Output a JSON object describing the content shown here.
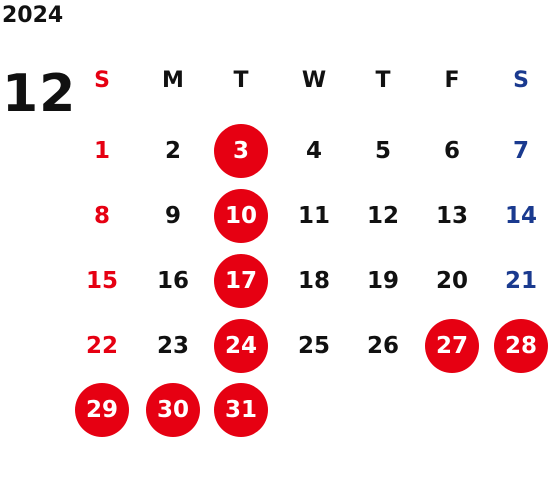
{
  "year": "2024",
  "month": "12",
  "colors": {
    "sunday": "#e60012",
    "saturday": "#1a3a8f",
    "weekday": "#111111",
    "holiday_fill": "#e60012",
    "holiday_text": "#ffffff"
  },
  "weekdays": [
    {
      "label": "S",
      "kind": "sunday"
    },
    {
      "label": "M",
      "kind": "weekday"
    },
    {
      "label": "T",
      "kind": "weekday"
    },
    {
      "label": "W",
      "kind": "weekday"
    },
    {
      "label": "T",
      "kind": "weekday"
    },
    {
      "label": "F",
      "kind": "weekday"
    },
    {
      "label": "S",
      "kind": "saturday"
    }
  ],
  "weeks": [
    [
      {
        "day": "1",
        "kind": "sunday"
      },
      {
        "day": "2",
        "kind": "weekday"
      },
      {
        "day": "3",
        "kind": "holiday"
      },
      {
        "day": "4",
        "kind": "weekday"
      },
      {
        "day": "5",
        "kind": "weekday"
      },
      {
        "day": "6",
        "kind": "weekday"
      },
      {
        "day": "7",
        "kind": "saturday"
      }
    ],
    [
      {
        "day": "8",
        "kind": "sunday"
      },
      {
        "day": "9",
        "kind": "weekday"
      },
      {
        "day": "10",
        "kind": "holiday"
      },
      {
        "day": "11",
        "kind": "weekday"
      },
      {
        "day": "12",
        "kind": "weekday"
      },
      {
        "day": "13",
        "kind": "weekday"
      },
      {
        "day": "14",
        "kind": "saturday"
      }
    ],
    [
      {
        "day": "15",
        "kind": "sunday"
      },
      {
        "day": "16",
        "kind": "weekday"
      },
      {
        "day": "17",
        "kind": "holiday"
      },
      {
        "day": "18",
        "kind": "weekday"
      },
      {
        "day": "19",
        "kind": "weekday"
      },
      {
        "day": "20",
        "kind": "weekday"
      },
      {
        "day": "21",
        "kind": "saturday"
      }
    ],
    [
      {
        "day": "22",
        "kind": "sunday"
      },
      {
        "day": "23",
        "kind": "weekday"
      },
      {
        "day": "24",
        "kind": "holiday"
      },
      {
        "day": "25",
        "kind": "weekday"
      },
      {
        "day": "26",
        "kind": "weekday"
      },
      {
        "day": "27",
        "kind": "holiday"
      },
      {
        "day": "28",
        "kind": "holiday"
      }
    ],
    [
      {
        "day": "29",
        "kind": "holiday"
      },
      {
        "day": "30",
        "kind": "holiday"
      },
      {
        "day": "31",
        "kind": "holiday"
      },
      null,
      null,
      null,
      null
    ]
  ]
}
